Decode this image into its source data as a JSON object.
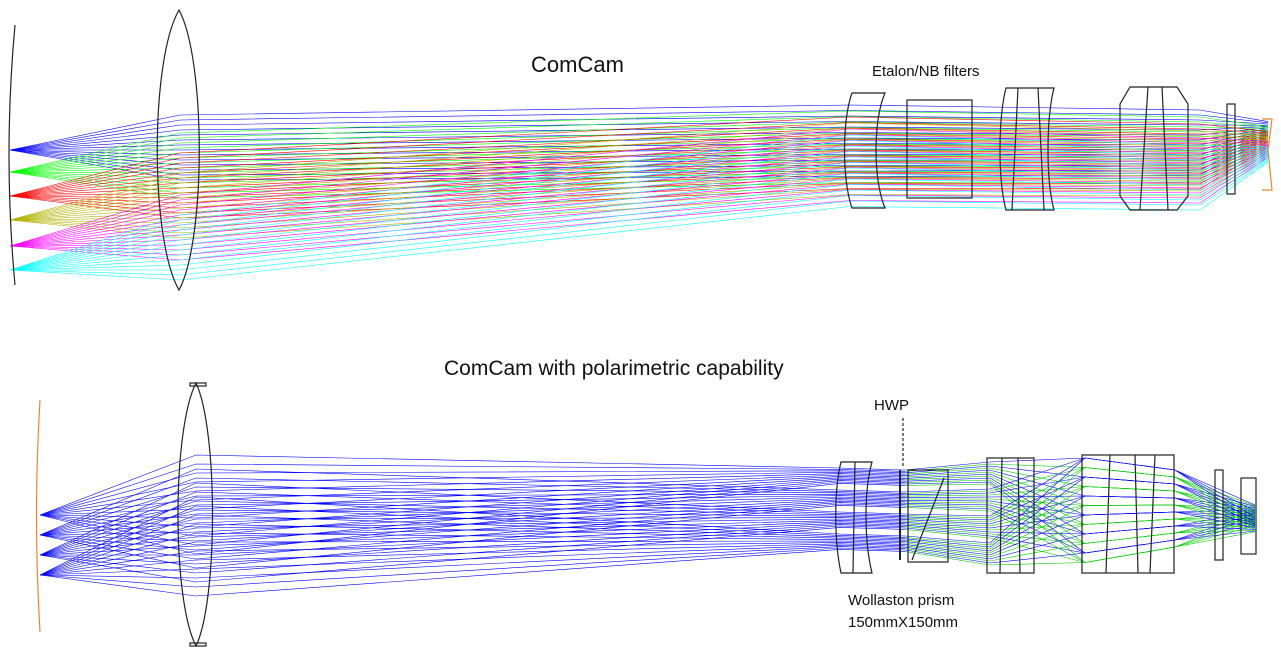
{
  "top": {
    "title": "ComCam",
    "label_filters": "Etalon/NB filters",
    "colors": [
      "#0000ff",
      "#00ff00",
      "#ff0000",
      "#b3b300",
      "#ff00ff",
      "#00ffff"
    ]
  },
  "bottom": {
    "title": "ComCam with polarimetric capability",
    "label_hwp": "HWP",
    "label_wollaston_1": "Wollaston prism",
    "label_wollaston_2": "150mmX150mm",
    "colors": [
      "#0000ff",
      "#00cc00",
      "#e8a040"
    ]
  }
}
